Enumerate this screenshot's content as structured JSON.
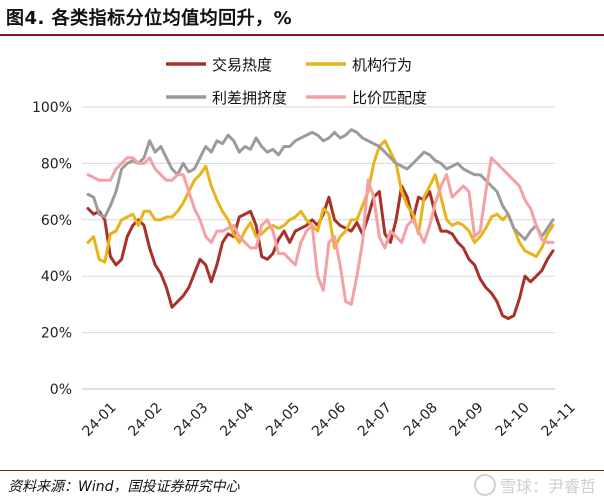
{
  "title": "图4. 各类指标分位均值均回升，%",
  "source": "资料来源：Wind，国投证券研究中心",
  "watermark": "雪球：尹睿哲",
  "chart_data": {
    "type": "line",
    "ylim": [
      0,
      100
    ],
    "yticks": [
      "0%",
      "20%",
      "40%",
      "60%",
      "80%",
      "100%"
    ],
    "xticks": [
      "24-01",
      "24-02",
      "24-03",
      "24-04",
      "24-05",
      "24-06",
      "24-07",
      "24-08",
      "24-09",
      "24-10",
      "24-11"
    ],
    "legend_position": "top",
    "series": [
      {
        "name": "交易热度",
        "color": "#a8322a",
        "values": [
          64,
          62,
          63,
          60,
          47,
          44,
          46,
          54,
          58,
          60,
          58,
          50,
          44,
          41,
          36,
          29,
          31,
          33,
          36,
          41,
          46,
          44,
          38,
          44,
          52,
          55,
          54,
          61,
          62,
          63,
          58,
          47,
          46,
          48,
          53,
          56,
          52,
          56,
          57,
          58,
          60,
          58,
          62,
          68,
          60,
          58,
          57,
          56,
          59,
          55,
          61,
          68,
          70,
          55,
          52,
          60,
          72,
          68,
          60,
          68,
          67,
          70,
          62,
          56,
          56,
          55,
          52,
          50,
          46,
          44,
          39,
          36,
          34,
          31,
          26,
          25,
          26,
          32,
          40,
          38,
          40,
          42,
          46,
          49
        ]
      },
      {
        "name": "机构行为",
        "color": "#e8b41a",
        "values": [
          52,
          54,
          46,
          45,
          55,
          56,
          60,
          61,
          62,
          58,
          63,
          63,
          60,
          60,
          61,
          61,
          63,
          66,
          70,
          74,
          76,
          79,
          72,
          67,
          63,
          60,
          55,
          52,
          56,
          59,
          54,
          55,
          57,
          58,
          57,
          58,
          60,
          61,
          63,
          60,
          58,
          56,
          64,
          62,
          50,
          54,
          56,
          60,
          60,
          65,
          70,
          80,
          86,
          88,
          84,
          80,
          70,
          65,
          62,
          55,
          68,
          72,
          76,
          68,
          60,
          58,
          59,
          58,
          56,
          52,
          54,
          57,
          61,
          62,
          60,
          62,
          57,
          52,
          49,
          48,
          47,
          50,
          55,
          58
        ]
      },
      {
        "name": "利差拥挤度",
        "color": "#9b9b9b",
        "values": [
          69,
          68,
          62,
          61,
          65,
          70,
          78,
          80,
          81,
          80,
          82,
          88,
          84,
          86,
          82,
          78,
          76,
          80,
          77,
          78,
          82,
          86,
          84,
          88,
          87,
          90,
          88,
          84,
          86,
          85,
          89,
          86,
          84,
          85,
          83,
          86,
          86,
          88,
          89,
          90,
          91,
          90,
          88,
          89,
          91,
          89,
          90,
          92,
          91,
          89,
          88,
          87,
          86,
          84,
          82,
          80,
          79,
          78,
          80,
          82,
          84,
          83,
          81,
          80,
          78,
          79,
          80,
          78,
          77,
          76,
          76,
          74,
          72,
          70,
          65,
          62,
          57,
          55,
          53,
          56,
          58,
          54,
          57,
          60
        ]
      },
      {
        "name": "比价匹配度",
        "color": "#f4a0a4",
        "values": [
          76,
          75,
          74,
          74,
          74,
          78,
          80,
          82,
          82,
          80,
          80,
          82,
          78,
          76,
          74,
          74,
          76,
          76,
          70,
          64,
          60,
          54,
          52,
          56,
          56,
          57,
          58,
          54,
          52,
          50,
          50,
          58,
          60,
          56,
          48,
          48,
          46,
          44,
          52,
          56,
          58,
          40,
          35,
          52,
          54,
          44,
          31,
          30,
          40,
          52,
          74,
          68,
          54,
          50,
          56,
          54,
          52,
          58,
          60,
          56,
          52,
          58,
          66,
          72,
          76,
          68,
          70,
          72,
          70,
          54,
          56,
          70,
          82,
          80,
          78,
          76,
          74,
          72,
          67,
          64,
          58,
          53,
          52,
          52
        ]
      }
    ]
  }
}
